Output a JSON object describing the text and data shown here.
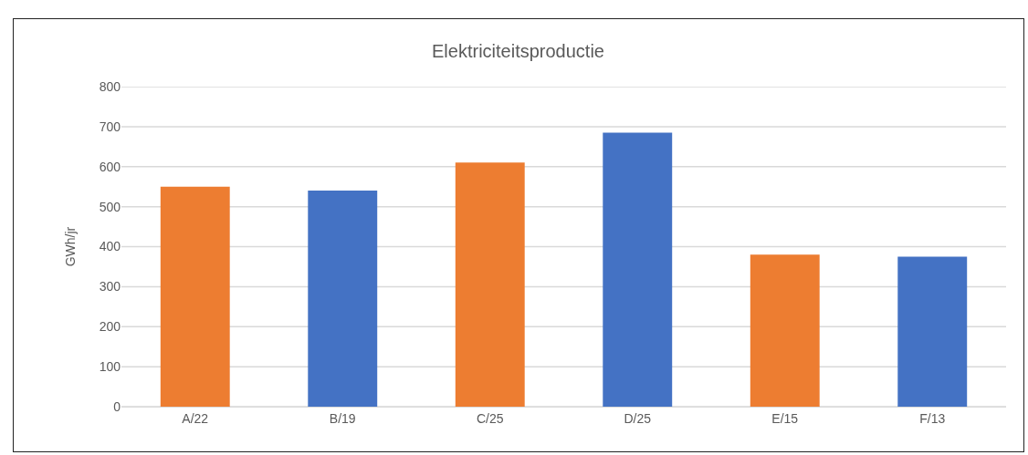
{
  "chart_data": {
    "type": "bar",
    "title": "Elektriciteitsproductie",
    "ylabel": "GWh/jr",
    "categories": [
      "A/22",
      "B/19",
      "C/25",
      "D/25",
      "E/15",
      "F/13"
    ],
    "values": [
      550,
      540,
      610,
      685,
      380,
      375
    ],
    "colors": [
      "#ed7d31",
      "#4472c4",
      "#ed7d31",
      "#4472c4",
      "#ed7d31",
      "#4472c4"
    ],
    "ylim": [
      0,
      800
    ],
    "yticks": [
      0,
      100,
      200,
      300,
      400,
      500,
      600,
      700,
      800
    ],
    "grid": "y"
  }
}
